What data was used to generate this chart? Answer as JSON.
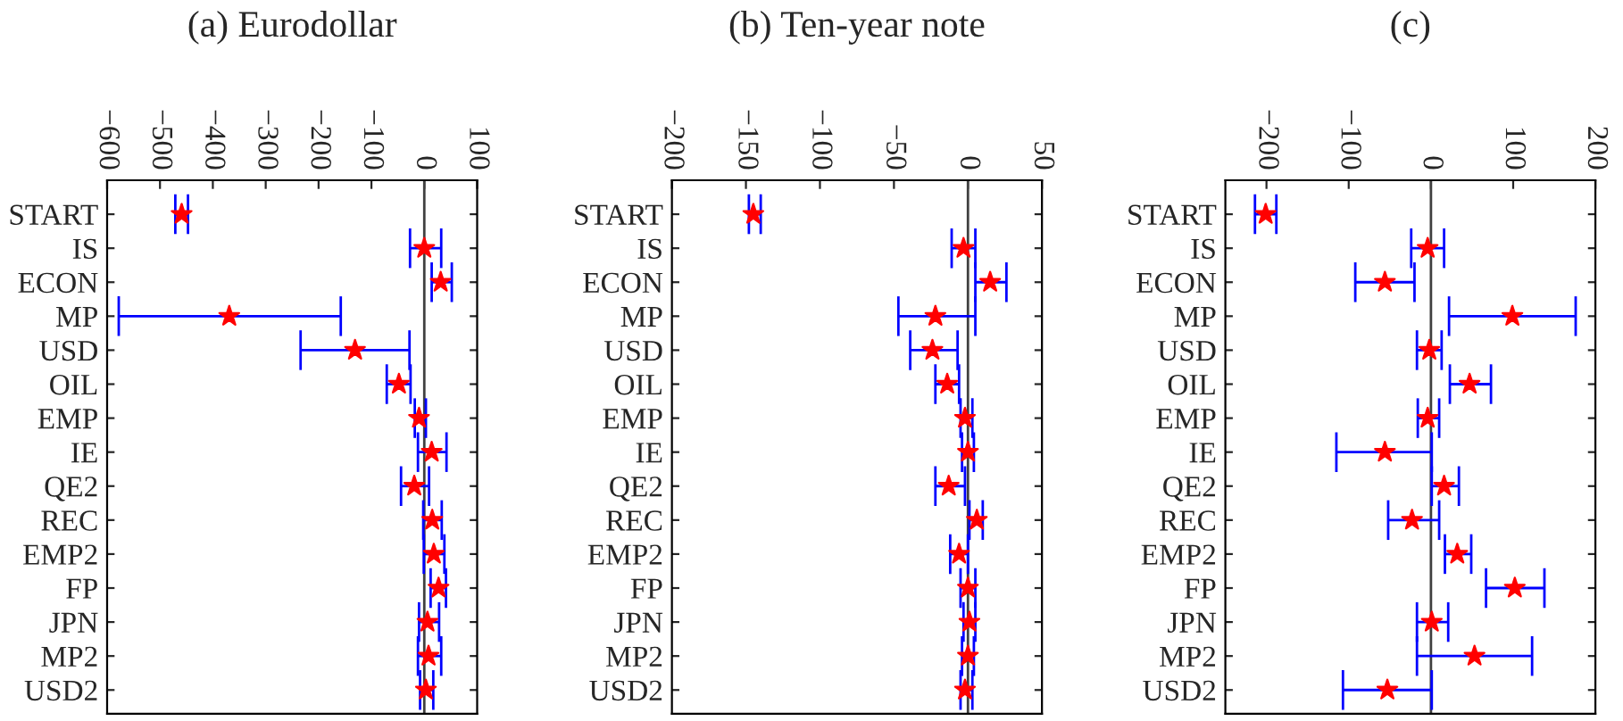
{
  "chart_data": [
    {
      "type": "scatter",
      "orientation": "horizontal",
      "title": "(a) Eurodollar",
      "marker": "star",
      "categories": [
        "START",
        "IS",
        "ECON",
        "MP",
        "USD",
        "OIL",
        "EMP",
        "IE",
        "QE2",
        "REC",
        "EMP2",
        "FP",
        "JPN",
        "MP2",
        "USD2"
      ],
      "xlim": [
        -600,
        100
      ],
      "xticks": [
        {
          "value": -600,
          "label": "−600"
        },
        {
          "value": -500,
          "label": "−500"
        },
        {
          "value": -400,
          "label": "−400"
        },
        {
          "value": -300,
          "label": "−300"
        },
        {
          "value": -200,
          "label": "−200"
        },
        {
          "value": -100,
          "label": "−100"
        },
        0,
        100
      ],
      "ref_lines": [
        {
          "axis": "x",
          "value": 0,
          "color": "#404040"
        }
      ],
      "series": [
        {
          "color": "#ff0000",
          "values": [
            -459,
            0,
            31,
            -369,
            -131,
            -48,
            -10,
            14,
            -19,
            15,
            18,
            27,
            6,
            8,
            3
          ],
          "errors": [
            [
              -471,
              -447
            ],
            [
              -27,
              32
            ],
            [
              14,
              52
            ],
            [
              -578,
              -158
            ],
            [
              -234,
              -28
            ],
            [
              -71,
              -26
            ],
            [
              -18,
              3
            ],
            [
              -12,
              42
            ],
            [
              -44,
              9
            ],
            [
              -2,
              33
            ],
            [
              -1,
              38
            ],
            [
              12,
              41
            ],
            [
              -10,
              28
            ],
            [
              -12,
              32
            ],
            [
              -8,
              17
            ]
          ]
        }
      ]
    },
    {
      "type": "scatter",
      "orientation": "horizontal",
      "title": "(b) Ten-year note",
      "marker": "star",
      "categories": [
        "START",
        "IS",
        "ECON",
        "MP",
        "USD",
        "OIL",
        "EMP",
        "IE",
        "QE2",
        "REC",
        "EMP2",
        "FP",
        "JPN",
        "MP2",
        "USD2"
      ],
      "xlim": [
        -200,
        50
      ],
      "xticks": [
        {
          "value": -200,
          "label": "−200"
        },
        {
          "value": -150,
          "label": "−150"
        },
        {
          "value": -100,
          "label": "−100"
        },
        {
          "value": -50,
          "label": "−50"
        },
        0,
        50
      ],
      "ref_lines": [
        {
          "axis": "x",
          "value": 0,
          "color": "#404040"
        }
      ],
      "series": [
        {
          "color": "#ff0000",
          "values": [
            -145,
            -3,
            15,
            -22,
            -24,
            -14,
            -2,
            0,
            -13,
            6,
            -6,
            0,
            1,
            0,
            -2
          ],
          "errors": [
            [
              -148,
              -140
            ],
            [
              -11,
              5
            ],
            [
              5,
              26
            ],
            [
              -47,
              5
            ],
            [
              -39,
              -7
            ],
            [
              -22,
              -6
            ],
            [
              -5,
              3
            ],
            [
              -4,
              4
            ],
            [
              -22,
              -2
            ],
            [
              1,
              10
            ],
            [
              -12,
              0
            ],
            [
              -5,
              5
            ],
            [
              -3,
              5
            ],
            [
              -4,
              4
            ],
            [
              -5,
              3
            ]
          ]
        }
      ]
    },
    {
      "type": "scatter",
      "orientation": "horizontal",
      "title": "(c)",
      "marker": "star",
      "categories": [
        "START",
        "IS",
        "ECON",
        "MP",
        "USD",
        "OIL",
        "EMP",
        "IE",
        "QE2",
        "REC",
        "EMP2",
        "FP",
        "JPN",
        "MP2",
        "USD2"
      ],
      "xlim": [
        -250,
        200
      ],
      "xticks": [
        {
          "value": -200,
          "label": "−200"
        },
        {
          "value": -100,
          "label": "−100"
        },
        0,
        100,
        200
      ],
      "ref_lines": [
        {
          "axis": "x",
          "value": 0,
          "color": "#404040"
        }
      ],
      "series": [
        {
          "color": "#ff0000",
          "values": [
            -201,
            -4,
            -56,
            99,
            -2,
            47,
            -4,
            -56,
            16,
            -23,
            32,
            102,
            1,
            53,
            -53
          ],
          "errors": [
            [
              -214,
              -188
            ],
            [
              -24,
              16
            ],
            [
              -92,
              -20
            ],
            [
              22,
              176
            ],
            [
              -17,
              13
            ],
            [
              23,
              73
            ],
            [
              -16,
              10
            ],
            [
              -115,
              1
            ],
            [
              1,
              34
            ],
            [
              -52,
              10
            ],
            [
              17,
              49
            ],
            [
              67,
              138
            ],
            [
              -17,
              21
            ],
            [
              -17,
              123
            ],
            [
              -107,
              1
            ]
          ]
        }
      ]
    }
  ]
}
